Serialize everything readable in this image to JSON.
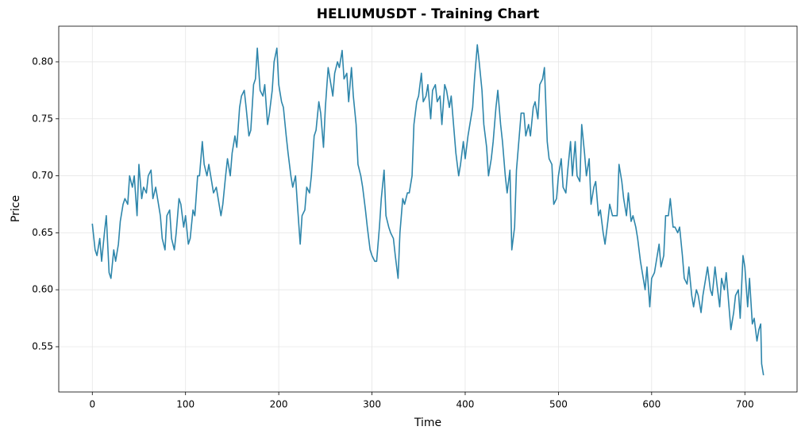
{
  "chart_data": {
    "type": "line",
    "title": "HELIUMUSDT - Training Chart",
    "x_label": "Time",
    "y_label": "Price",
    "x": [
      0,
      3,
      5,
      8,
      10,
      13,
      15,
      18,
      20,
      23,
      25,
      28,
      30,
      33,
      35,
      38,
      40,
      43,
      45,
      48,
      50,
      53,
      55,
      58,
      60,
      63,
      65,
      68,
      70,
      73,
      75,
      78,
      80,
      83,
      85,
      88,
      90,
      93,
      95,
      98,
      100,
      103,
      105,
      108,
      110,
      113,
      115,
      118,
      120,
      123,
      125,
      128,
      130,
      133,
      135,
      138,
      140,
      143,
      145,
      148,
      150,
      153,
      155,
      158,
      160,
      163,
      165,
      168,
      170,
      173,
      175,
      177,
      180,
      183,
      185,
      188,
      190,
      193,
      195,
      198,
      200,
      203,
      205,
      208,
      210,
      213,
      215,
      218,
      220,
      223,
      225,
      228,
      230,
      233,
      235,
      238,
      240,
      243,
      245,
      248,
      250,
      253,
      255,
      258,
      260,
      263,
      265,
      268,
      270,
      273,
      275,
      278,
      280,
      283,
      285,
      288,
      290,
      293,
      295,
      298,
      300,
      303,
      305,
      308,
      310,
      313,
      315,
      318,
      320,
      323,
      325,
      328,
      330,
      333,
      335,
      338,
      340,
      343,
      345,
      348,
      350,
      353,
      355,
      358,
      360,
      363,
      365,
      368,
      370,
      373,
      375,
      378,
      380,
      383,
      385,
      388,
      390,
      393,
      395,
      398,
      400,
      403,
      405,
      408,
      410,
      413,
      415,
      418,
      420,
      423,
      425,
      428,
      430,
      433,
      435,
      438,
      440,
      443,
      445,
      448,
      450,
      453,
      455,
      458,
      460,
      463,
      465,
      468,
      470,
      473,
      475,
      478,
      480,
      483,
      485,
      488,
      490,
      493,
      495,
      498,
      500,
      503,
      505,
      508,
      510,
      513,
      515,
      518,
      520,
      523,
      525,
      528,
      530,
      533,
      535,
      538,
      540,
      543,
      545,
      548,
      550,
      553,
      555,
      558,
      560,
      563,
      565,
      568,
      570,
      573,
      575,
      578,
      580,
      583,
      585,
      588,
      590,
      593,
      595,
      598,
      600,
      603,
      605,
      608,
      610,
      613,
      615,
      618,
      620,
      623,
      625,
      628,
      630,
      633,
      635,
      638,
      640,
      643,
      645,
      648,
      650,
      653,
      655,
      658,
      660,
      663,
      665,
      668,
      670,
      673,
      675,
      678,
      680,
      683,
      685,
      688,
      690,
      693,
      695,
      698,
      700,
      703,
      705,
      708,
      710,
      713,
      715,
      717,
      718,
      720
    ],
    "series": [
      {
        "name": "Price",
        "color": "#2e86ab",
        "values": [
          0.658,
          0.635,
          0.63,
          0.645,
          0.625,
          0.65,
          0.665,
          0.615,
          0.61,
          0.635,
          0.625,
          0.64,
          0.66,
          0.675,
          0.68,
          0.675,
          0.7,
          0.69,
          0.7,
          0.665,
          0.71,
          0.68,
          0.69,
          0.685,
          0.7,
          0.705,
          0.68,
          0.69,
          0.68,
          0.665,
          0.645,
          0.635,
          0.665,
          0.67,
          0.645,
          0.635,
          0.65,
          0.68,
          0.675,
          0.655,
          0.665,
          0.64,
          0.645,
          0.67,
          0.665,
          0.7,
          0.7,
          0.73,
          0.71,
          0.7,
          0.71,
          0.695,
          0.685,
          0.69,
          0.68,
          0.665,
          0.675,
          0.7,
          0.715,
          0.7,
          0.72,
          0.735,
          0.725,
          0.76,
          0.77,
          0.775,
          0.76,
          0.735,
          0.74,
          0.78,
          0.785,
          0.812,
          0.775,
          0.77,
          0.78,
          0.745,
          0.755,
          0.775,
          0.8,
          0.812,
          0.78,
          0.765,
          0.76,
          0.735,
          0.72,
          0.7,
          0.69,
          0.7,
          0.675,
          0.64,
          0.665,
          0.67,
          0.69,
          0.685,
          0.7,
          0.735,
          0.74,
          0.765,
          0.755,
          0.725,
          0.76,
          0.795,
          0.785,
          0.77,
          0.79,
          0.8,
          0.795,
          0.81,
          0.785,
          0.79,
          0.765,
          0.795,
          0.77,
          0.745,
          0.71,
          0.7,
          0.69,
          0.67,
          0.655,
          0.635,
          0.63,
          0.625,
          0.625,
          0.655,
          0.68,
          0.705,
          0.665,
          0.655,
          0.65,
          0.645,
          0.63,
          0.61,
          0.65,
          0.68,
          0.675,
          0.685,
          0.685,
          0.7,
          0.745,
          0.765,
          0.77,
          0.79,
          0.765,
          0.77,
          0.78,
          0.75,
          0.775,
          0.78,
          0.765,
          0.77,
          0.745,
          0.78,
          0.775,
          0.76,
          0.77,
          0.74,
          0.72,
          0.7,
          0.71,
          0.73,
          0.715,
          0.735,
          0.745,
          0.76,
          0.785,
          0.815,
          0.8,
          0.775,
          0.745,
          0.725,
          0.7,
          0.715,
          0.73,
          0.76,
          0.775,
          0.745,
          0.73,
          0.7,
          0.685,
          0.705,
          0.635,
          0.655,
          0.705,
          0.735,
          0.755,
          0.755,
          0.735,
          0.745,
          0.735,
          0.76,
          0.765,
          0.75,
          0.78,
          0.785,
          0.795,
          0.73,
          0.715,
          0.71,
          0.675,
          0.68,
          0.7,
          0.715,
          0.69,
          0.685,
          0.705,
          0.73,
          0.7,
          0.73,
          0.7,
          0.695,
          0.745,
          0.72,
          0.7,
          0.715,
          0.675,
          0.69,
          0.695,
          0.665,
          0.67,
          0.65,
          0.64,
          0.66,
          0.675,
          0.665,
          0.665,
          0.665,
          0.71,
          0.695,
          0.68,
          0.665,
          0.685,
          0.66,
          0.665,
          0.655,
          0.645,
          0.625,
          0.615,
          0.6,
          0.62,
          0.585,
          0.61,
          0.615,
          0.625,
          0.64,
          0.62,
          0.63,
          0.665,
          0.665,
          0.68,
          0.655,
          0.655,
          0.65,
          0.655,
          0.63,
          0.61,
          0.605,
          0.62,
          0.595,
          0.585,
          0.6,
          0.595,
          0.58,
          0.595,
          0.61,
          0.62,
          0.6,
          0.595,
          0.62,
          0.605,
          0.585,
          0.61,
          0.6,
          0.615,
          0.585,
          0.565,
          0.58,
          0.595,
          0.6,
          0.575,
          0.63,
          0.62,
          0.585,
          0.61,
          0.57,
          0.575,
          0.555,
          0.565,
          0.57,
          0.535,
          0.525
        ]
      }
    ],
    "xlim": [
      -36,
      756
    ],
    "ylim": [
      0.5103,
      0.8313
    ],
    "xticks": [
      0,
      100,
      200,
      300,
      400,
      500,
      600,
      700
    ],
    "yticks": [
      0.55,
      {
        "value": 0.6,
        "label": "0.60"
      },
      0.65,
      {
        "value": 0.7,
        "label": "0.70"
      },
      0.75,
      {
        "value": 0.8,
        "label": "0.80"
      }
    ],
    "grid": true
  }
}
